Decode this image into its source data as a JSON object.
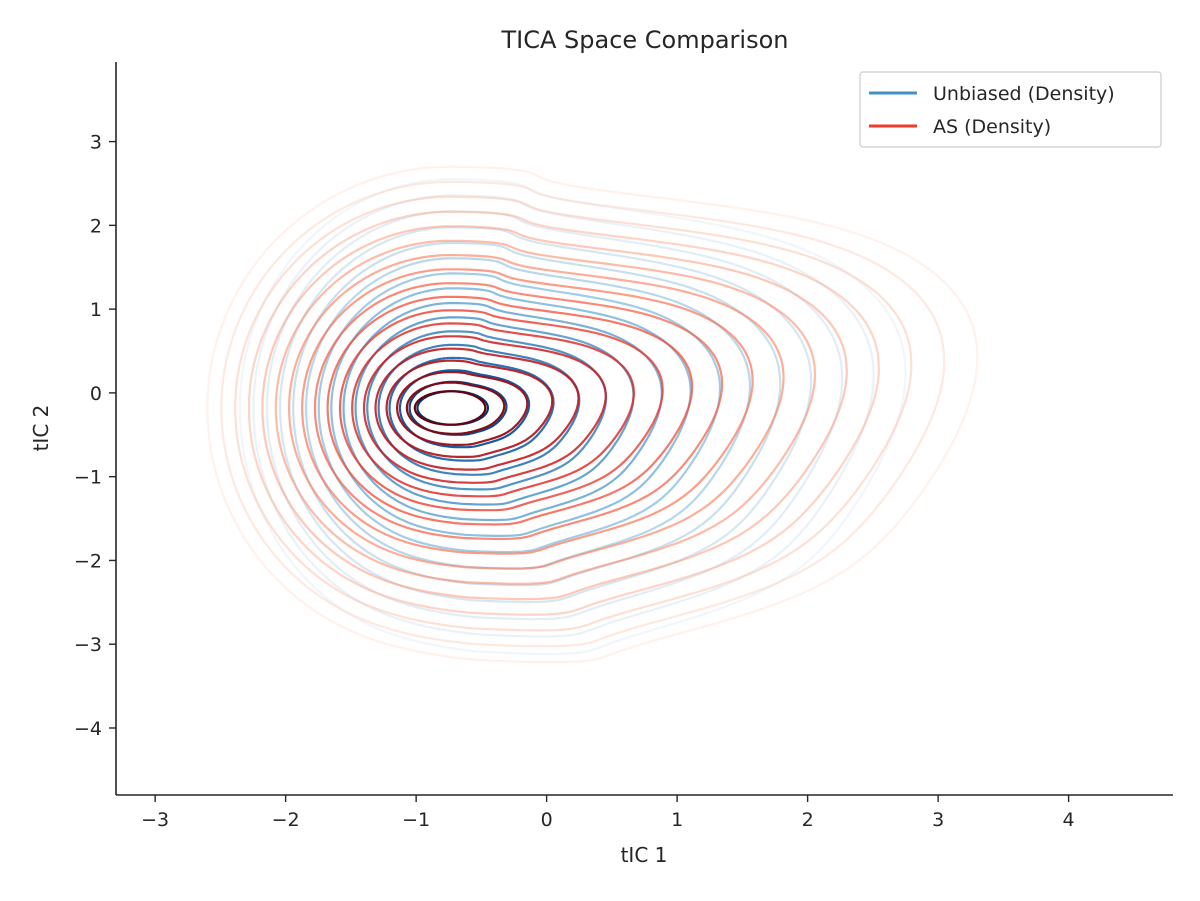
{
  "chart_data": {
    "type": "contour",
    "title": "TICA Space Comparison",
    "xlabel": "tIC 1",
    "ylabel": "tIC 2",
    "xlim": [
      -3.3,
      4.8
    ],
    "ylim": [
      -4.8,
      3.95
    ],
    "xticks": [
      -3,
      -2,
      -1,
      0,
      1,
      2,
      3,
      4
    ],
    "xtick_labels": [
      "−3",
      "−2",
      "−1",
      "0",
      "1",
      "2",
      "3",
      "4"
    ],
    "yticks": [
      -4,
      -3,
      -2,
      -1,
      0,
      1,
      2,
      3
    ],
    "ytick_labels": [
      "−4",
      "−3",
      "−2",
      "−1",
      "0",
      "1",
      "2",
      "3"
    ],
    "grid": false,
    "legend_position": "top-right",
    "series": [
      {
        "name": "Unbiased (Density)",
        "color": "#4292c6",
        "colormap": [
          "#deebf7",
          "#c6dbef",
          "#9ecae1",
          "#6baed6",
          "#4292c6",
          "#2171b5",
          "#08519c",
          "#08306b"
        ],
        "center": [
          -0.72,
          -0.18
        ],
        "levels": 16,
        "outer_extent": {
          "x_min": -2.35,
          "x_max": 2.75,
          "y_min": -3.0,
          "y_max": 2.55
        },
        "secondary_lobe": [
          2.1,
          0.3
        ]
      },
      {
        "name": "AS (Density)",
        "color": "#ef3b2c",
        "colormap": [
          "#fee0d2",
          "#fcbba1",
          "#fc9272",
          "#fb6a4a",
          "#ef3b2c",
          "#cb181d",
          "#a50f15",
          "#67000d"
        ],
        "center": [
          -0.74,
          -0.18
        ],
        "levels": 18,
        "outer_extent": {
          "x_min": -2.6,
          "x_max": 3.3,
          "y_min": -3.1,
          "y_max": 2.7
        },
        "secondary_lobe": [
          2.4,
          0.5
        ]
      }
    ]
  }
}
